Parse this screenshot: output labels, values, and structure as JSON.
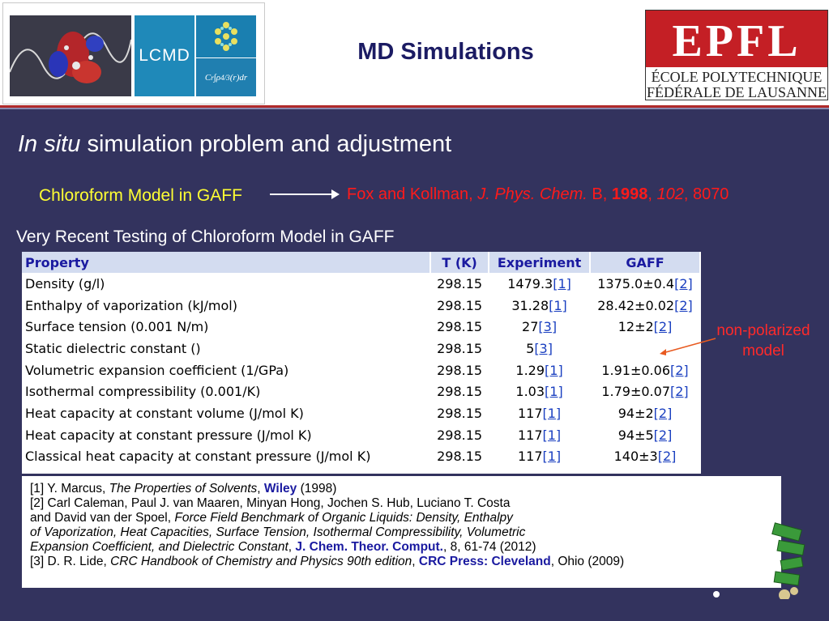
{
  "header": {
    "title": "MD Simulations",
    "logo_left": {
      "lab": "LCMD"
    },
    "logo_right": {
      "mark": "EPFL",
      "line1": "ÉCOLE POLYTECHNIQUE",
      "line2": "FÉDÉRALE DE LAUSANNE"
    }
  },
  "slide": {
    "subtitle_italic": "In situ",
    "subtitle_rest": "simulation problem and adjustment",
    "model_label": "Chloroform Model in GAFF",
    "ref": {
      "authors": "Fox and Kollman, ",
      "journal": "J. Phys. Chem.",
      "series": " B, ",
      "year": "1998",
      "sep": ", ",
      "volume": "102",
      "pages": ", 8070"
    },
    "testing": "Very Recent Testing of Chloroform Model in GAFF"
  },
  "table": {
    "headers": [
      "Property",
      "T (K)",
      "Experiment",
      "GAFF"
    ],
    "rows": [
      {
        "property": "Density (g/l)",
        "t": "298.15",
        "exp": "1479.3",
        "exp_ref": "[1]",
        "gaff": "1375.0±0.4",
        "gaff_ref": "[2]"
      },
      {
        "property": "Enthalpy of vaporization (kJ/mol)",
        "t": "298.15",
        "exp": "31.28",
        "exp_ref": "[1]",
        "gaff": "28.42±0.02",
        "gaff_ref": "[2]"
      },
      {
        "property": "Surface tension (0.001 N/m)",
        "t": "298.15",
        "exp": "27",
        "exp_ref": "[3]",
        "gaff": "12±2",
        "gaff_ref": "[2]"
      },
      {
        "property": "Static dielectric constant ()",
        "t": "298.15",
        "exp": "5",
        "exp_ref": "[3]",
        "gaff": "",
        "gaff_ref": ""
      },
      {
        "property": "Volumetric expansion coefficient (1/GPa)",
        "t": "298.15",
        "exp": "1.29",
        "exp_ref": "[1]",
        "gaff": "1.91±0.06",
        "gaff_ref": "[2]"
      },
      {
        "property": "Isothermal compressibility (0.001/K)",
        "t": "298.15",
        "exp": "1.03",
        "exp_ref": "[1]",
        "gaff": "1.79±0.07",
        "gaff_ref": "[2]"
      },
      {
        "property": "Heat capacity at constant volume (J/mol K)",
        "t": "298.15",
        "exp": "117",
        "exp_ref": "[1]",
        "gaff": "94±2",
        "gaff_ref": "[2]"
      },
      {
        "property": "Heat capacity at constant pressure (J/mol K)",
        "t": "298.15",
        "exp": "117",
        "exp_ref": "[1]",
        "gaff": "94±5",
        "gaff_ref": "[2]"
      },
      {
        "property": "Classical heat capacity at constant pressure (J/mol K)",
        "t": "298.15",
        "exp": "117",
        "exp_ref": "[1]",
        "gaff": "140±3",
        "gaff_ref": "[2]"
      }
    ]
  },
  "annotation": {
    "line1": "non-polarized",
    "line2": "model"
  },
  "references": {
    "r1": {
      "pre": "[1] Y. Marcus, ",
      "title": "The Properties of Solvents",
      "sep": ", ",
      "pub": "Wiley",
      "post": " (1998)"
    },
    "r2a": "[2] Carl Caleman, Paul J. van Maaren, Minyan Hong, Jochen S. Hub, Luciano T. Costa",
    "r2b_pre": "and David van der Spoel, ",
    "r2b_title": "Force Field Benchmark of Organic Liquids: Density, Enthalpy",
    "r2c": "of Vaporization, Heat Capacities, Surface Tension, Isothermal Compressibility, Volumetric",
    "r2d_title": "Expansion Coefficient, and Dielectric Constant",
    "r2d_sep": ", ",
    "r2d_journal": "J. Chem. Theor. Comput.",
    "r2d_post": ", 8, 61-74 (2012)",
    "r3": {
      "pre": "[3] D. R. Lide, ",
      "title": "CRC Handbook of Chemistry and Physics 90th edition",
      "sep": ", ",
      "pub": "CRC Press: Cleveland",
      "post": ", Ohio (2009)"
    }
  },
  "colors": {
    "background": "#33335e",
    "title": "#1b1b63",
    "accent_yellow": "#ffff33",
    "accent_red": "#ff1a1a",
    "table_header_bg": "#d3dcf0",
    "link_blue": "#1a3fc0"
  }
}
